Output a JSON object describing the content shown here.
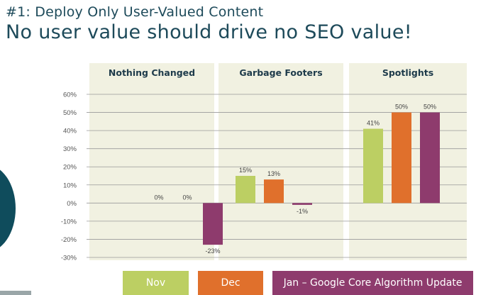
{
  "slide": {
    "subtitle": "#1: Deploy Only User-Valued Content",
    "title": "No user value should drive no SEO value!"
  },
  "colors": {
    "title": "#1d4a5a",
    "panel_bg": "#f1f1e1",
    "grid": "#9a9a9a",
    "nov": "#bccf63",
    "dec": "#e0702c",
    "jan": "#8e3b6d",
    "decor_circle": "#0f4c5c"
  },
  "chart_data": {
    "type": "bar",
    "categories": [
      "Nothing Changed",
      "Garbage Footers",
      "Spotlights"
    ],
    "series": [
      {
        "name": "Nov",
        "values": [
          0,
          15,
          41
        ],
        "labels": [
          "0%",
          "15%",
          "41%"
        ]
      },
      {
        "name": "Dec",
        "values": [
          0,
          13,
          50
        ],
        "labels": [
          "0%",
          "13%",
          "50%"
        ]
      },
      {
        "name": "Jan – Google Core Algorithm Update",
        "values": [
          -23,
          -1,
          50
        ],
        "labels": [
          "-23%",
          "-1%",
          "50%"
        ]
      }
    ],
    "y_ticks": [
      60,
      50,
      40,
      30,
      20,
      10,
      0,
      -10,
      -20,
      -30
    ],
    "y_tick_labels": [
      "60%",
      "50%",
      "40%",
      "30%",
      "20%",
      "10%",
      "0%",
      "-10%",
      "-20%",
      "-30%"
    ],
    "ylim": [
      -30,
      60
    ],
    "grid": true,
    "legend_position": "bottom"
  },
  "legend": [
    {
      "label": "Nov"
    },
    {
      "label": "Dec"
    },
    {
      "label": "Jan – Google Core Algorithm Update"
    }
  ]
}
